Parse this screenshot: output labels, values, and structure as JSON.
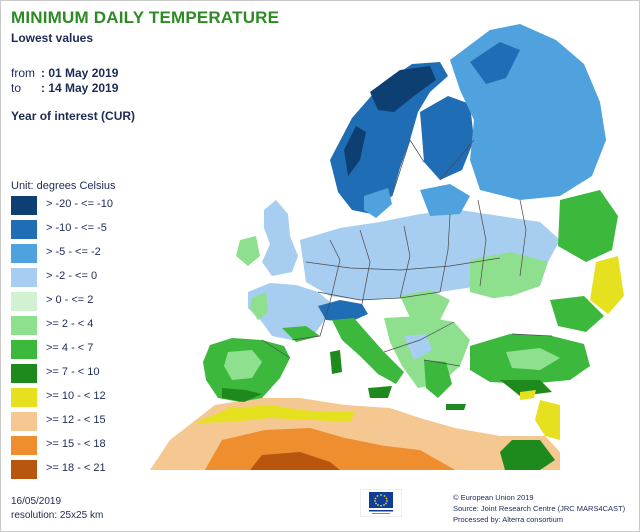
{
  "title": "MINIMUM DAILY TEMPERATURE",
  "subtitle": "Lowest values",
  "period": {
    "from_label": "from",
    "from_value": ": 01 May 2019",
    "to_label": "to",
    "to_value": ": 14 May 2019"
  },
  "year_of_interest": "Year of interest (CUR)",
  "legend": {
    "unit": "Unit: degrees Celsius",
    "items": [
      {
        "label": "> -20 - <= -10",
        "color": "#0d3f73"
      },
      {
        "label": "> -10 - <= -5",
        "color": "#1f6db4"
      },
      {
        "label": "> -5 - <= -2",
        "color": "#4fa2de"
      },
      {
        "label": "> -2 - <= 0",
        "color": "#a7cdf0"
      },
      {
        "label": "> 0 - <= 2",
        "color": "#d2f0d2"
      },
      {
        "label": ">= 2 - < 4",
        "color": "#8ee08e"
      },
      {
        "label": ">= 4 - < 7",
        "color": "#3cb93c"
      },
      {
        "label": ">= 7 - < 10",
        "color": "#1e8a1e"
      },
      {
        "label": ">= 10 - < 12",
        "color": "#e6e11e"
      },
      {
        "label": ">= 12 - < 15",
        "color": "#f4c890"
      },
      {
        "label": ">= 15 - < 18",
        "color": "#ee8e2e"
      },
      {
        "label": ">= 18 - < 21",
        "color": "#b8560f"
      }
    ]
  },
  "footer": {
    "date": "16/05/2019",
    "resolution": "resolution: 25x25 km"
  },
  "credits": {
    "copyright": "© European Union 2019",
    "source": "Source: Joint Research Centre (JRC MARS4CAST)",
    "processed": "Processed by: Alterra consortium"
  },
  "colors": {
    "sea": "#ffffff",
    "title": "#2d8a25",
    "text": "#1c2a55",
    "borders": "#4a4a4a"
  }
}
